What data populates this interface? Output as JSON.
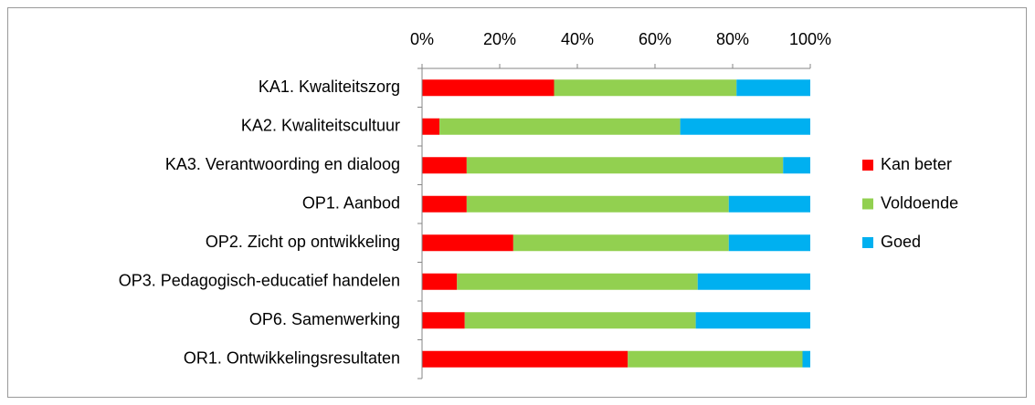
{
  "chart_data": {
    "type": "stacked-bar-horizontal",
    "categories": [
      "KA1. Kwaliteitszorg",
      "KA2. Kwaliteitscultuur",
      "KA3. Verantwoording en dialoog",
      "OP1. Aanbod",
      "OP2. Zicht op ontwikkeling",
      "OP3. Pedagogisch-educatief handelen",
      "OP6. Samenwerking",
      "OR1. Ontwikkelingsresultaten"
    ],
    "series": [
      {
        "name": "Kan beter",
        "color": "#ff0000",
        "values": [
          34,
          4.5,
          11.5,
          11.5,
          23.5,
          9,
          11,
          53
        ]
      },
      {
        "name": "Voldoende",
        "color": "#92d050",
        "values": [
          47,
          62,
          81.5,
          67.5,
          55.5,
          62,
          59.5,
          45
        ]
      },
      {
        "name": "Goed",
        "color": "#00b0f0",
        "values": [
          19,
          33.5,
          7,
          21,
          21,
          29,
          29.5,
          2
        ]
      }
    ],
    "xlim": [
      0,
      100
    ],
    "xticks": [
      {
        "value": 0,
        "label": "0%"
      },
      {
        "value": 20,
        "label": "20%"
      },
      {
        "value": 40,
        "label": "40%"
      },
      {
        "value": 60,
        "label": "60%"
      },
      {
        "value": 80,
        "label": "80%"
      },
      {
        "value": 100,
        "label": "100%"
      }
    ],
    "legend": "right"
  }
}
